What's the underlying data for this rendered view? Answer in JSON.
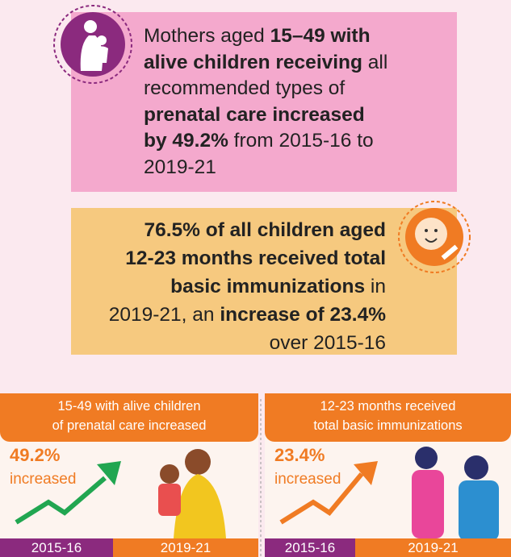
{
  "top_card": {
    "lines": [
      [
        {
          "text": "Mothers aged ",
          "bold": false
        },
        {
          "text": "15–49 with",
          "bold": true
        }
      ],
      [
        {
          "text": "alive children receiving",
          "bold": true
        },
        {
          "text": " all",
          "bold": false
        }
      ],
      [
        {
          "text": "recommended types of",
          "bold": false
        }
      ],
      [
        {
          "text": "prenatal care increased",
          "bold": true
        }
      ],
      [
        {
          "text": "by 49.2%",
          "bold": true
        },
        {
          "text": " from 2015-16 to",
          "bold": false
        }
      ],
      [
        {
          "text": "2019-21",
          "bold": false
        }
      ]
    ]
  },
  "second_card": {
    "lines": [
      [
        {
          "text": "76.5% of all children aged",
          "bold": true
        }
      ],
      [
        {
          "text": "12-23 months received total",
          "bold": true
        }
      ],
      [
        {
          "text": "basic immunizations",
          "bold": true
        },
        {
          "text": " in",
          "bold": false
        }
      ],
      [
        {
          "text": "2019-21, an ",
          "bold": false
        },
        {
          "text": "increase of 23.4%",
          "bold": true
        }
      ],
      [
        {
          "text": "over 2015-16",
          "bold": false
        }
      ]
    ]
  },
  "panels": [
    {
      "header": [
        "15-49 with alive children",
        "of prenatal care increased"
      ],
      "value": "49.2%",
      "caption": "increased",
      "years": [
        "2015-16",
        "2019-21"
      ]
    },
    {
      "header": [
        "12-23 months received",
        "total basic immunizations"
      ],
      "value": "23.4%",
      "caption": "increased",
      "years": [
        "2015-16",
        "2019-21"
      ]
    }
  ]
}
